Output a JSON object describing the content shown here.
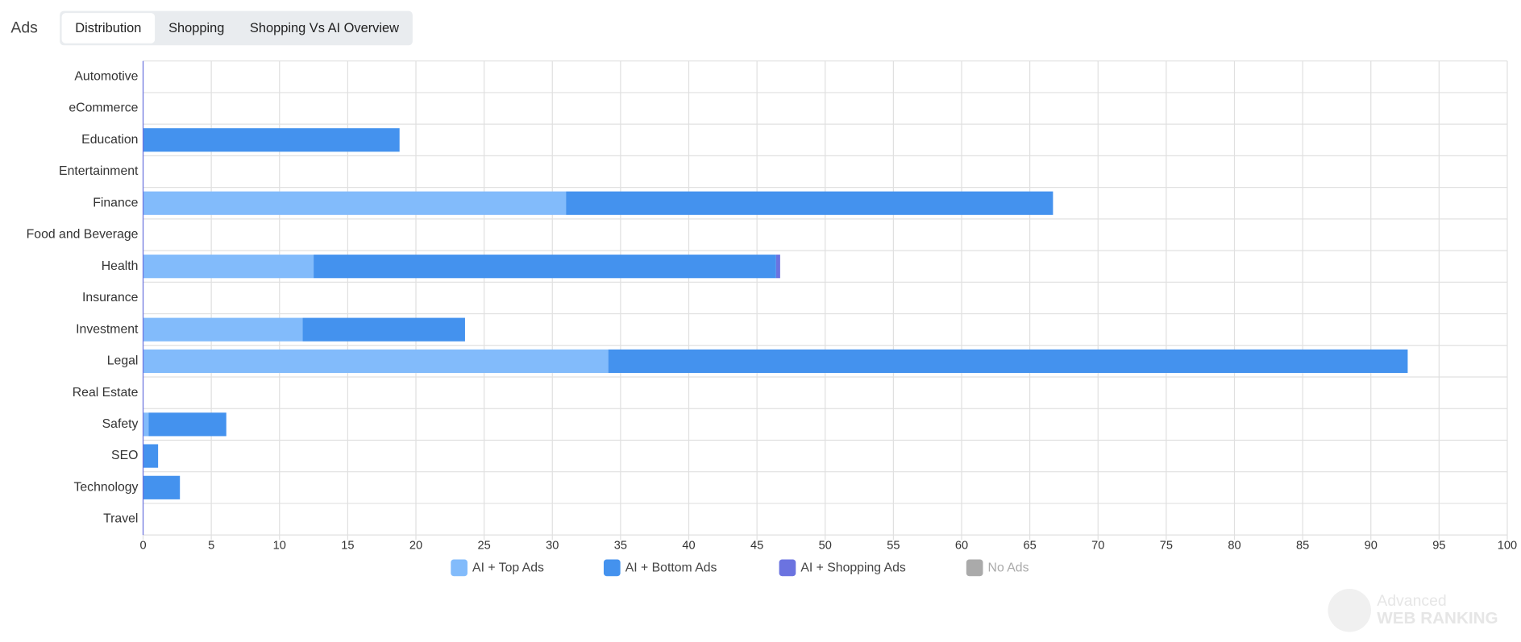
{
  "header": {
    "title": "Ads",
    "tabs": [
      "Distribution",
      "Shopping",
      "Shopping Vs AI Overview"
    ],
    "active_tab": 0
  },
  "watermark": [
    "Advanced",
    "WEB RANKING"
  ],
  "chart_data": {
    "type": "bar",
    "orientation": "horizontal",
    "stacked": true,
    "categories": [
      "Automotive",
      "eCommerce",
      "Education",
      "Entertainment",
      "Finance",
      "Food and Beverage",
      "Health",
      "Insurance",
      "Investment",
      "Legal",
      "Real Estate",
      "Safety",
      "SEO",
      "Technology",
      "Travel"
    ],
    "series": [
      {
        "name": "AI + Top Ads",
        "color": "#82bbfb",
        "values": [
          0,
          0,
          0,
          0,
          31,
          0,
          12.5,
          0,
          11.7,
          34.1,
          0,
          0.4,
          0,
          0,
          0
        ]
      },
      {
        "name": "AI + Bottom Ads",
        "color": "#4492ee",
        "values": [
          0,
          0,
          18.8,
          0,
          35.7,
          0,
          33.9,
          0,
          11.9,
          58.6,
          0,
          5.7,
          1.1,
          2.7,
          0
        ]
      },
      {
        "name": "AI + Shopping Ads",
        "color": "#6b73e0",
        "values": [
          0,
          0,
          0,
          0,
          0,
          0,
          0.3,
          0,
          0,
          0,
          0,
          0,
          0,
          0,
          0
        ]
      },
      {
        "name": "No Ads",
        "color": "#aaaaaa",
        "hidden": true,
        "values": [
          null,
          null,
          null,
          null,
          null,
          null,
          null,
          null,
          null,
          null,
          null,
          null,
          null,
          null,
          null
        ]
      }
    ],
    "xlim": [
      0,
      100
    ],
    "xticks": [
      0,
      5,
      10,
      15,
      20,
      25,
      30,
      35,
      40,
      45,
      50,
      55,
      60,
      65,
      70,
      75,
      80,
      85,
      90,
      95,
      100
    ],
    "grid": true,
    "legend": "bottom"
  }
}
